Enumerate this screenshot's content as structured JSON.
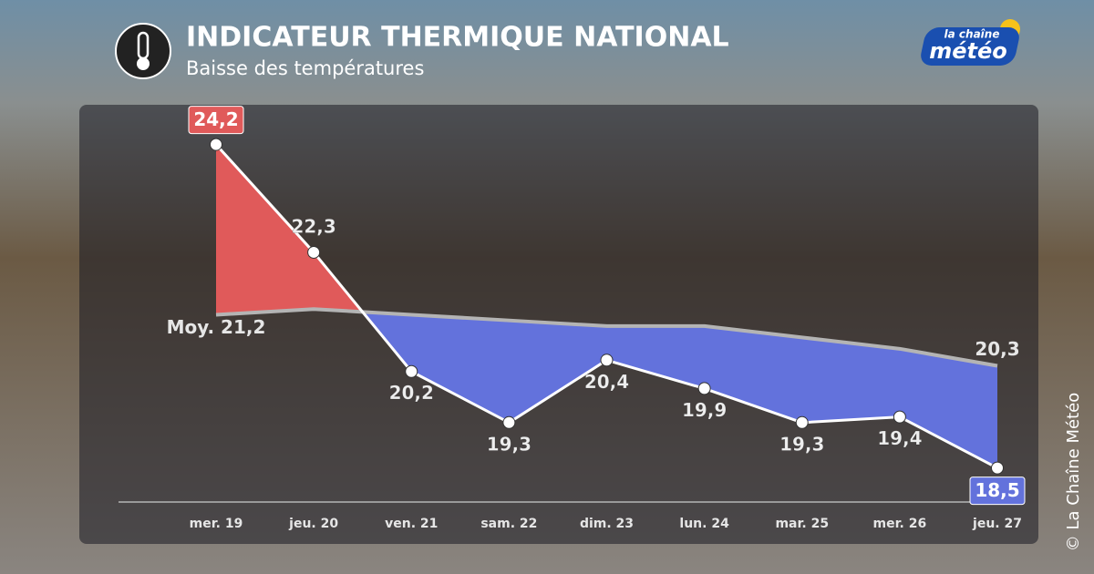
{
  "chart_data": {
    "type": "line",
    "title": "INDICATEUR THERMIQUE NATIONAL",
    "subtitle": "Baisse des températures",
    "categories": [
      "mer. 19",
      "jeu. 20",
      "ven. 21",
      "sam. 22",
      "dim. 23",
      "lun. 24",
      "mar. 25",
      "mer. 26",
      "jeu. 27"
    ],
    "ylim": [
      17.9,
      24.9
    ],
    "above_color": "#e05a5a",
    "below_color": "#6372dc",
    "series": [
      {
        "name": "Indicateur thermique",
        "color": "#ffffff",
        "values": [
          24.2,
          22.3,
          20.2,
          19.3,
          20.4,
          19.9,
          19.3,
          19.4,
          18.5
        ],
        "value_labels": [
          "24,2",
          "22,3",
          "20,2",
          "19,3",
          "20,4",
          "19,9",
          "19,3",
          "19,4",
          "18,5"
        ]
      },
      {
        "name": "Moyenne",
        "color": "#b4b4b4",
        "values": [
          21.2,
          21.3,
          21.2,
          21.1,
          21.0,
          21.0,
          20.8,
          20.6,
          20.3
        ],
        "value_labels": [
          "Moy. 21,2",
          null,
          null,
          null,
          null,
          null,
          null,
          null,
          "20,3"
        ]
      }
    ]
  },
  "logo": {
    "small": "la chaîne",
    "large": "météo"
  },
  "copyright": "© La Chaîne Météo"
}
